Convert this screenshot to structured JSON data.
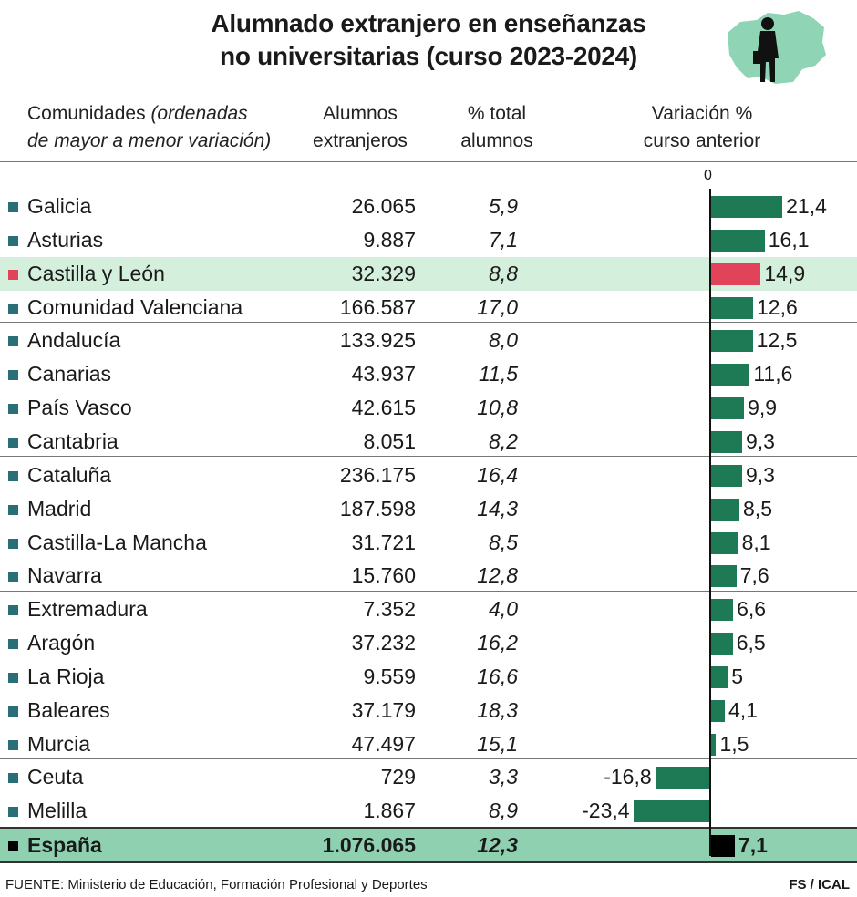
{
  "title_line1": "Alumnado extranjero en enseñanzas",
  "title_line2": "no universitarias (curso 2023-2024)",
  "headers": {
    "col1_line1": "Comunidades",
    "col1_line1_note": "(ordenadas",
    "col1_line2": "de mayor a menor variación)",
    "col2_line1": "Alumnos",
    "col2_line2": "extranjeros",
    "col3_line1": "% total",
    "col3_line2": "alumnos",
    "col4_line1": "Variación %",
    "col4_line2": "curso anterior"
  },
  "axis_zero_label": "0",
  "colors": {
    "bar_default": "#1e7a55",
    "bar_highlight": "#e0435a",
    "bar_total": "#000000",
    "square_default": "#2a6f78",
    "square_highlight": "#e0435a",
    "highlight_row_bg": "#d4f0dc",
    "total_row_bg": "#8fd0b0"
  },
  "chart_data": {
    "type": "bar",
    "orientation": "horizontal",
    "categories": [
      "Galicia",
      "Asturias",
      "Castilla y León",
      "Comunidad Valenciana",
      "Andalucía",
      "Canarias",
      "País Vasco",
      "Cantabria",
      "Cataluña",
      "Madrid",
      "Castilla-La Mancha",
      "Navarra",
      "Extremadura",
      "Aragón",
      "La Rioja",
      "Baleares",
      "Murcia",
      "Ceuta",
      "Melilla",
      "España"
    ],
    "alumnos_labels": [
      "26.065",
      "9.887",
      "32.329",
      "166.587",
      "133.925",
      "43.937",
      "42.615",
      "8.051",
      "236.175",
      "187.598",
      "31.721",
      "15.760",
      "7.352",
      "37.232",
      "9.559",
      "37.179",
      "47.497",
      "729",
      "1.867",
      "1.076.065"
    ],
    "pct_labels": [
      "5,9",
      "7,1",
      "8,8",
      "17,0",
      "8,0",
      "11,5",
      "10,8",
      "8,2",
      "16,4",
      "14,3",
      "8,5",
      "12,8",
      "4,0",
      "16,2",
      "16,6",
      "18,3",
      "15,1",
      "3,3",
      "8,9",
      "12,3"
    ],
    "values": [
      21.4,
      16.1,
      14.9,
      12.6,
      12.5,
      11.6,
      9.9,
      9.3,
      9.3,
      8.5,
      8.1,
      7.6,
      6.6,
      6.5,
      5,
      4.1,
      1.5,
      -16.8,
      -23.4,
      7.1
    ],
    "value_labels": [
      "21,4",
      "16,1",
      "14,9",
      "12,6",
      "12,5",
      "11,6",
      "9,9",
      "9,3",
      "9,3",
      "8,5",
      "8,1",
      "7,6",
      "6,6",
      "6,5",
      "5",
      "4,1",
      "1,5",
      "-16,8",
      "-23,4",
      "7,1"
    ],
    "highlight": "Castilla y León",
    "total": "España"
  },
  "footer": {
    "source": "FUENTE: Ministerio de Educación, Formación Profesional y Deportes",
    "credit": "FS / ICAL"
  }
}
